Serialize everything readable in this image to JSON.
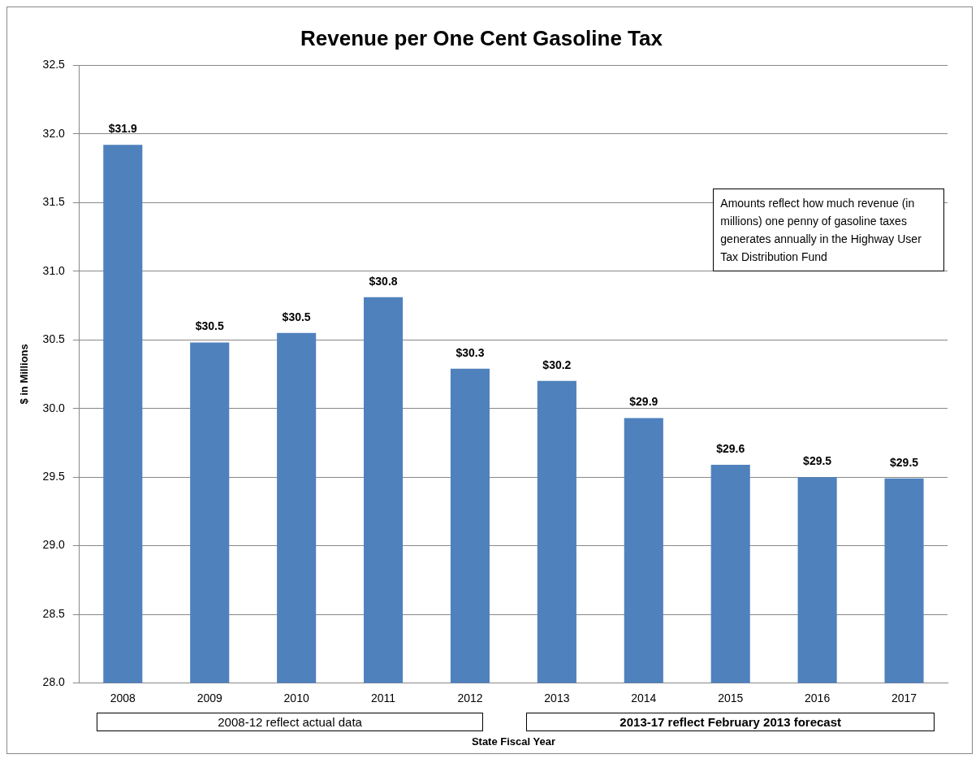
{
  "chart_data": {
    "type": "bar",
    "title": "Revenue per One Cent Gasoline Tax",
    "xlabel": "State Fiscal Year",
    "ylabel": "$ in Millions",
    "categories": [
      "2008",
      "2009",
      "2010",
      "2011",
      "2012",
      "2013",
      "2014",
      "2015",
      "2016",
      "2017"
    ],
    "values": [
      31.92,
      30.48,
      30.55,
      30.81,
      30.29,
      30.2,
      29.93,
      29.59,
      29.5,
      29.49
    ],
    "value_labels": [
      "$31.9",
      "$30.5",
      "$30.5",
      "$30.8",
      "$30.3",
      "$30.2",
      "$29.9",
      "$29.6",
      "$29.5",
      "$29.5"
    ],
    "color": "#4f81bd",
    "ylim": [
      28,
      32.5
    ],
    "yticks": [
      {
        "value": 28,
        "label": "28.0"
      },
      {
        "value": 28.5,
        "label": "28.5"
      },
      {
        "value": 29,
        "label": "29.0"
      },
      {
        "value": 29.5,
        "label": "29.5"
      },
      {
        "value": 30,
        "label": "30.0"
      },
      {
        "value": 30.5,
        "label": "30.5"
      },
      {
        "value": 31,
        "label": "31.0"
      },
      {
        "value": 31.5,
        "label": "31.5"
      },
      {
        "value": 32,
        "label": "32.0"
      },
      {
        "value": 32.5,
        "label": "32.5"
      }
    ],
    "grid": "y",
    "annotations": [
      "Amounts reflect how much revenue (in millions) one penny of gasoline taxes generates annually in the Highway User Tax Distribution Fund",
      "2008-12 reflect actual data",
      "2013-17 reflect February 2013 forecast"
    ]
  }
}
